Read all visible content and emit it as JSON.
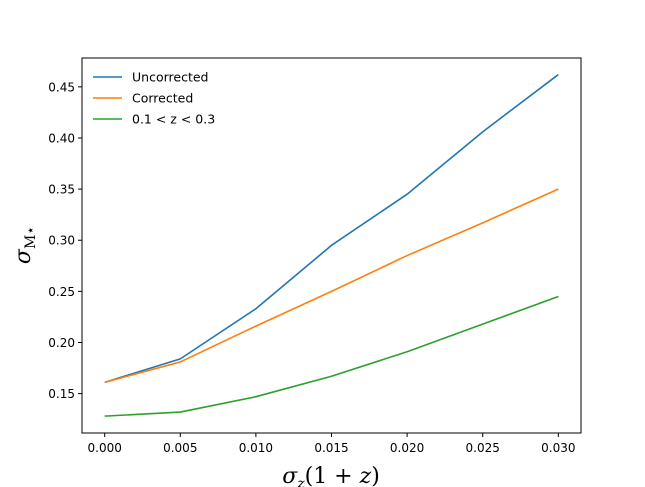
{
  "chart_data": {
    "type": "line",
    "title": "",
    "xlabel": "σz(1 + z)",
    "ylabel": "σM⋆",
    "x": [
      0.0,
      0.005,
      0.01,
      0.015,
      0.02,
      0.025,
      0.03
    ],
    "xticks": [
      "0.000",
      "0.005",
      "0.010",
      "0.015",
      "0.020",
      "0.025",
      "0.030"
    ],
    "yticks": [
      "0.15",
      "0.20",
      "0.25",
      "0.30",
      "0.35",
      "0.40",
      "0.45"
    ],
    "ytick_values": [
      0.15,
      0.2,
      0.25,
      0.3,
      0.35,
      0.4,
      0.45
    ],
    "xlim": [
      -0.0015,
      0.0315
    ],
    "ylim": [
      0.1115,
      0.4782
    ],
    "grid": false,
    "legend_position": "top-left",
    "series": [
      {
        "name": "Uncorrected",
        "color": "#1f77b4",
        "values": [
          0.161,
          0.184,
          0.233,
          0.295,
          0.345,
          0.406,
          0.462
        ]
      },
      {
        "name": "Corrected",
        "color": "#ff7f0e",
        "values": [
          0.161,
          0.181,
          0.216,
          0.25,
          0.285,
          0.317,
          0.35
        ]
      },
      {
        "name": "0.1 < z < 0.3",
        "color": "#2ca02c",
        "values": [
          0.128,
          0.132,
          0.147,
          0.167,
          0.191,
          0.218,
          0.245
        ]
      }
    ]
  }
}
